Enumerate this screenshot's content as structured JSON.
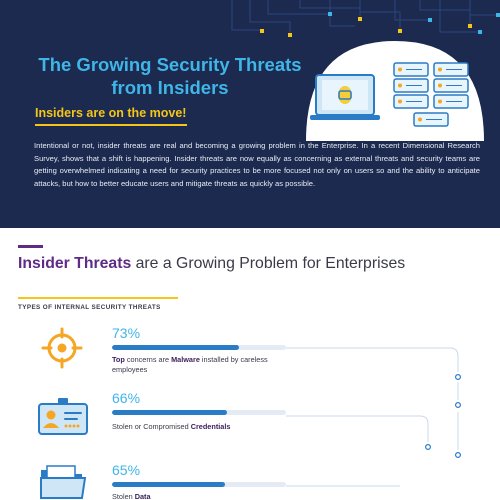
{
  "header": {
    "title": "The Growing Security Threats from Insiders",
    "subtitle": "Insiders are on the move!",
    "intro": "Intentional or not, insider threats are real and becoming a growing problem in the Enterprise. In a recent Dimensional Research Survey, shows that a shift is happening. Insider threats are now equally as concerning as external threats and security teams are getting overwhelmed indicating a need for security practices to be more focused not only on users so and the ability to anticipate attacks, but how to better educate users and mitigate threats as quickly as possible."
  },
  "section": {
    "title_strong": "Insider Threats",
    "title_rest": " are a Growing Problem for Enterprises",
    "types_label": "TYPES OF INTERNAL SECURITY THREATS"
  },
  "threats": [
    {
      "percent_label": "73%",
      "value": 73,
      "desc_bold_1": "Top",
      "desc_mid": " concerns are ",
      "desc_bold_2": "Malware",
      "desc_tail": " installed by careless employees",
      "icon": "target-icon"
    },
    {
      "percent_label": "66%",
      "value": 66,
      "desc_plain": "Stolen or Compromised ",
      "desc_bold": "Credentials",
      "icon": "id-card-icon"
    },
    {
      "percent_label": "65%",
      "value": 65,
      "desc_plain": "Stolen ",
      "desc_bold": "Data",
      "icon": "folder-icon"
    }
  ],
  "colors": {
    "navy": "#1b2a4e",
    "accent_blue": "#3fb5e8",
    "yellow": "#f5c518",
    "purple": "#5e2b86",
    "bar_blue": "#2a7cc7",
    "orange": "#f5a623"
  }
}
